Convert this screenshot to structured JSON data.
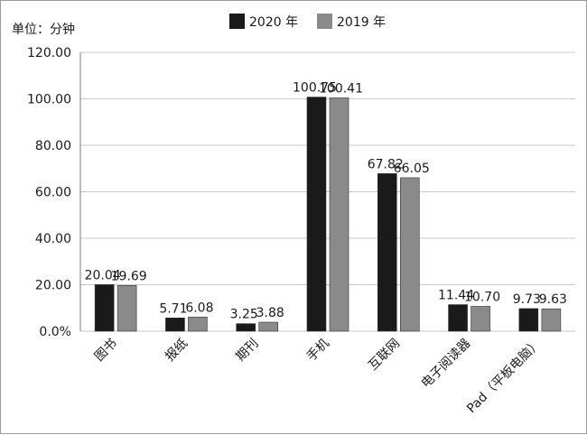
{
  "chart_data": {
    "type": "bar",
    "unit_label": "单位：分钟",
    "categories": [
      "图书",
      "报纸",
      "期刊",
      "手机",
      "互联网",
      "电子阅读器",
      "Pad（平板电脑）"
    ],
    "series": [
      {
        "name": "2020 年",
        "color": "#1a1a1a",
        "values": [
          20.04,
          5.71,
          3.25,
          100.75,
          67.82,
          11.44,
          9.73
        ],
        "labels": [
          "20.04",
          "5.71",
          "3.25",
          "100.75",
          "67.82",
          "11.44",
          "9.73"
        ]
      },
      {
        "name": "2019 年",
        "color": "#8a8a8a",
        "values": [
          19.69,
          6.08,
          3.88,
          100.41,
          66.05,
          10.7,
          9.63
        ],
        "labels": [
          "19.69",
          "6.08",
          "3.88",
          "100.41",
          "66.05",
          "10.70",
          "9.63"
        ]
      }
    ],
    "ylim": [
      0,
      120
    ],
    "y_ticks": [
      0,
      20,
      40,
      60,
      80,
      100,
      120
    ],
    "y_tick_labels": [
      "0.0%",
      "20.00",
      "40.00",
      "60.00",
      "80.00",
      "100.00",
      "120.00"
    ],
    "grid": true,
    "legend": "top-center"
  }
}
